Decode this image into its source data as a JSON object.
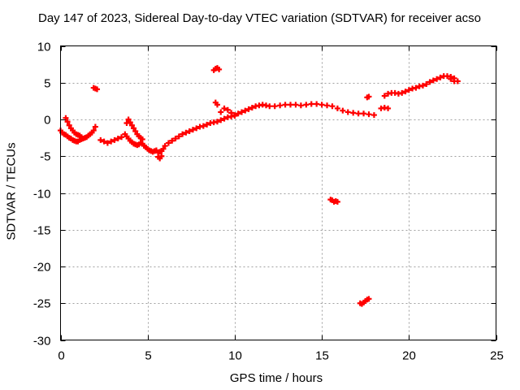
{
  "chart_data": {
    "type": "scatter",
    "title": "Day 147 of 2023, Sidereal Day-to-day VTEC variation (SDTVAR) for receiver acso",
    "xlabel": "GPS time / hours",
    "ylabel": "SDTVAR / TECUs",
    "xlim": [
      0,
      25
    ],
    "ylim": [
      -30,
      10
    ],
    "xticks": [
      0,
      5,
      10,
      15,
      20,
      25
    ],
    "yticks": [
      10,
      5,
      0,
      -5,
      -10,
      -15,
      -20,
      -25,
      -30
    ],
    "grid": true,
    "marker": "+",
    "color": "#ff0000",
    "series": [
      {
        "name": "SDTVAR",
        "x": [
          0.0,
          0.1,
          0.2,
          0.3,
          0.4,
          0.5,
          0.6,
          0.7,
          0.8,
          0.9,
          1.0,
          1.1,
          1.2,
          1.3,
          1.4,
          1.5,
          1.6,
          1.7,
          1.8,
          1.9,
          2.0,
          2.3,
          2.5,
          2.7,
          2.9,
          3.1,
          3.3,
          3.5,
          3.7,
          3.8,
          3.9,
          4.0,
          4.1,
          4.2,
          4.3,
          4.4,
          4.5,
          4.6,
          4.7,
          4.8,
          4.9,
          5.0,
          5.1,
          5.2,
          5.3,
          5.4,
          5.5,
          5.6,
          5.7,
          5.8,
          5.9,
          6.0,
          6.2,
          6.4,
          6.6,
          6.8,
          7.0,
          7.2,
          7.4,
          7.6,
          7.8,
          8.0,
          8.2,
          8.4,
          8.6,
          8.8,
          9.0,
          9.2,
          9.4,
          9.6,
          9.8,
          10.0,
          10.2,
          10.4,
          10.6,
          10.8,
          11.0,
          11.2,
          11.4,
          11.6,
          11.8,
          12.0,
          12.3,
          12.6,
          12.9,
          13.2,
          13.5,
          13.8,
          14.1,
          14.4,
          14.7,
          15.0,
          15.3,
          15.6,
          15.9,
          16.2,
          16.5,
          16.8,
          17.1,
          17.4,
          17.7,
          18.0,
          18.6,
          18.8,
          19.0,
          19.2,
          19.4,
          19.6,
          19.8,
          20.0,
          20.2,
          20.4,
          20.6,
          20.8,
          21.0,
          21.2,
          21.4,
          21.6,
          21.8,
          22.0,
          22.2,
          22.4,
          22.6,
          22.8,
          0.3,
          0.4,
          0.5,
          0.6,
          0.7,
          0.8,
          0.9,
          1.0,
          1.1,
          1.2,
          3.8,
          3.9,
          4.0,
          4.1,
          4.2,
          4.3,
          4.4,
          4.5,
          4.6,
          4.7,
          9.2,
          9.4,
          9.6,
          9.8,
          10.0,
          1.9,
          2.0,
          2.1,
          8.8,
          8.9,
          9.0,
          9.1,
          8.9,
          9.0,
          15.5,
          15.6,
          15.7,
          15.8,
          15.9,
          17.2,
          17.3,
          17.4,
          17.5,
          17.6,
          17.7,
          18.4,
          18.6,
          18.8,
          17.6,
          17.7,
          5.6,
          5.7,
          5.8,
          22.4,
          22.6
        ],
        "y": [
          -1.5,
          -1.8,
          -2.0,
          -2.1,
          -2.3,
          -2.5,
          -2.6,
          -2.8,
          -2.9,
          -3.0,
          -3.0,
          -2.8,
          -2.7,
          -2.6,
          -2.5,
          -2.4,
          -2.2,
          -2.0,
          -1.8,
          -1.5,
          -1.0,
          -2.8,
          -3.0,
          -3.2,
          -3.0,
          -2.8,
          -2.6,
          -2.4,
          -2.0,
          -2.3,
          -2.6,
          -2.9,
          -3.1,
          -3.3,
          -3.4,
          -3.5,
          -3.4,
          -3.2,
          -3.3,
          -3.6,
          -3.8,
          -4.0,
          -4.2,
          -4.3,
          -4.4,
          -4.3,
          -4.2,
          -4.5,
          -4.4,
          -4.3,
          -4.0,
          -3.6,
          -3.2,
          -2.9,
          -2.6,
          -2.3,
          -2.0,
          -1.8,
          -1.6,
          -1.4,
          -1.2,
          -1.0,
          -0.9,
          -0.7,
          -0.5,
          -0.4,
          -0.3,
          -0.1,
          0.1,
          0.3,
          0.4,
          0.6,
          0.8,
          1.0,
          1.2,
          1.4,
          1.6,
          1.8,
          1.9,
          2.0,
          1.9,
          1.8,
          1.8,
          1.9,
          2.0,
          2.0,
          2.0,
          1.9,
          2.0,
          2.1,
          2.1,
          2.0,
          1.9,
          1.8,
          1.5,
          1.2,
          1.0,
          0.9,
          0.8,
          0.8,
          0.7,
          0.6,
          3.2,
          3.5,
          3.6,
          3.6,
          3.5,
          3.6,
          3.8,
          4.0,
          4.2,
          4.3,
          4.5,
          4.6,
          4.8,
          5.1,
          5.3,
          5.5,
          5.7,
          5.9,
          5.9,
          5.8,
          5.6,
          5.2,
          0.2,
          -0.3,
          -0.8,
          -1.2,
          -1.5,
          -1.8,
          -2.0,
          -2.1,
          -2.2,
          -2.4,
          -0.5,
          0.0,
          -0.4,
          -0.8,
          -1.2,
          -1.6,
          -2.0,
          -2.3,
          -2.5,
          -2.7,
          1.0,
          1.5,
          1.3,
          0.9,
          0.5,
          4.3,
          4.2,
          4.1,
          6.7,
          6.9,
          7.0,
          6.8,
          2.3,
          2.0,
          -10.9,
          -11.0,
          -11.2,
          -11.1,
          -11.2,
          -25.0,
          -25.1,
          -24.9,
          -24.7,
          -24.5,
          -24.4,
          1.5,
          1.6,
          1.5,
          3.0,
          3.1,
          -5.1,
          -5.3,
          -5.0,
          5.5,
          5.2
        ]
      }
    ]
  }
}
